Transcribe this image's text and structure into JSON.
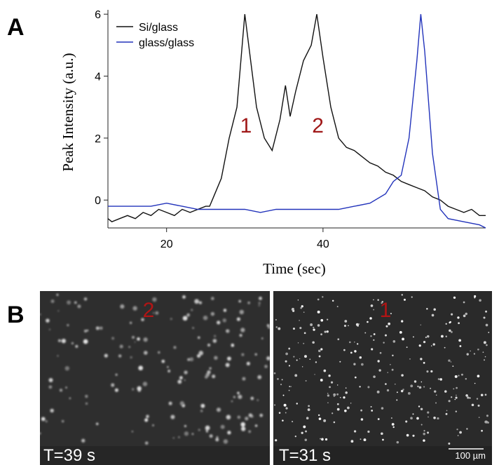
{
  "chart_data": {
    "type": "line",
    "xlabel": "Time (sec)",
    "ylabel": "Peak Intensity (a.u.)",
    "xlim": [
      12.5,
      60.8
    ],
    "xticks": [
      20,
      40
    ],
    "ylim": [
      -0.9,
      6.05
    ],
    "yticks": [
      0,
      2,
      4,
      6
    ],
    "series": [
      {
        "name": "Si/glass",
        "color": "#111111",
        "x": [
          12.5,
          13,
          14,
          15,
          16,
          17,
          18,
          19,
          20,
          21,
          22,
          23,
          24,
          25,
          25.5,
          26,
          27,
          28,
          29,
          29.5,
          30,
          30.7,
          31.5,
          32.5,
          33.5,
          34.5,
          35.2,
          35.8,
          36.5,
          37.5,
          38.5,
          39.2,
          40,
          41,
          42,
          43,
          44,
          45,
          46,
          47,
          48,
          49,
          50,
          51,
          52,
          53,
          54,
          55,
          56,
          57,
          58,
          59,
          60,
          60.8
        ],
        "values": [
          -0.6,
          -0.7,
          -0.6,
          -0.5,
          -0.6,
          -0.4,
          -0.5,
          -0.3,
          -0.4,
          -0.5,
          -0.3,
          -0.4,
          -0.3,
          -0.2,
          -0.2,
          0.1,
          0.7,
          2.0,
          3.0,
          4.5,
          6.0,
          4.6,
          3.0,
          2.0,
          1.6,
          2.6,
          3.7,
          2.7,
          3.5,
          4.5,
          5.0,
          6.0,
          4.6,
          3.0,
          2.0,
          1.7,
          1.6,
          1.4,
          1.2,
          1.1,
          0.9,
          0.8,
          0.6,
          0.5,
          0.4,
          0.3,
          0.1,
          0.0,
          -0.2,
          -0.3,
          -0.4,
          -0.3,
          -0.5,
          -0.5
        ]
      },
      {
        "name": "glass/glass",
        "color": "#2233bb",
        "x": [
          12.5,
          14,
          16,
          18,
          20,
          22,
          24,
          26,
          28,
          30,
          32,
          34,
          36,
          38,
          40,
          42,
          44,
          46,
          48,
          49,
          50,
          51,
          52,
          52.5,
          53,
          54,
          55,
          56,
          58,
          60,
          60.8
        ],
        "values": [
          -0.2,
          -0.2,
          -0.2,
          -0.2,
          -0.1,
          -0.2,
          -0.3,
          -0.3,
          -0.3,
          -0.3,
          -0.4,
          -0.3,
          -0.3,
          -0.3,
          -0.3,
          -0.3,
          -0.2,
          -0.1,
          0.2,
          0.6,
          0.8,
          2.0,
          4.5,
          6.0,
          4.8,
          1.5,
          -0.3,
          -0.6,
          -0.7,
          -0.8,
          -0.9
        ]
      }
    ],
    "annotations": [
      {
        "text": "1",
        "x": 29.4,
        "y": 2.4
      },
      {
        "text": "2",
        "x": 38.6,
        "y": 2.4
      }
    ]
  },
  "panel_labels": [
    "A",
    "B"
  ],
  "images": [
    {
      "marker": "2",
      "caption": "T=39 s"
    },
    {
      "marker": "1",
      "caption": "T=31 s",
      "scale": "100 µm"
    }
  ]
}
